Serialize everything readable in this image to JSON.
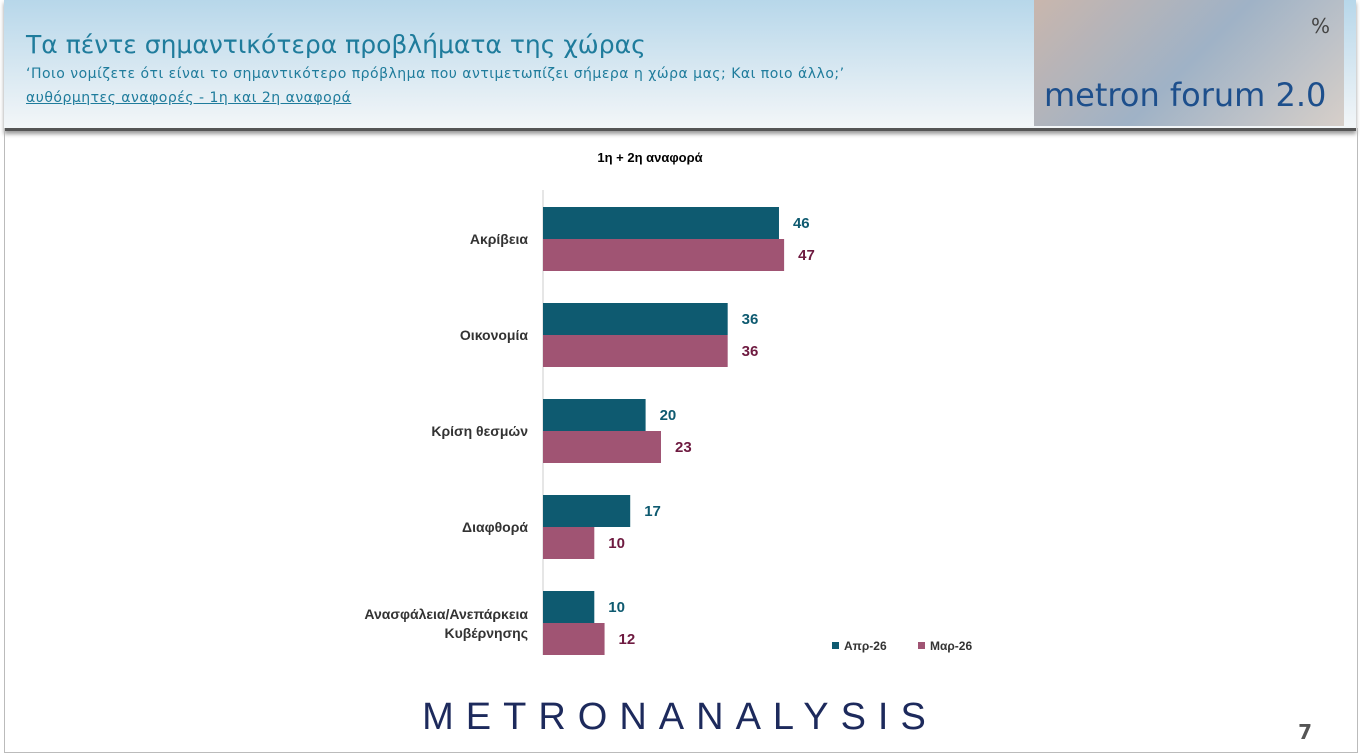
{
  "header": {
    "title": "Τα πέντε σημαντικότερα προβλήματα της χώρας",
    "subtitle": "‘Ποιο νομίζετε ότι είναι το σημαντικότερο πρόβλημα που αντιμετωπίζει σήμερα η χώρα μας; Και ποιο άλλο;’",
    "note": "αυθόρμητες αναφορές - 1η και 2η αναφορά",
    "logo_text": "metron forum 2.0",
    "logo_symbol": "%"
  },
  "chart_data": {
    "type": "bar",
    "orientation": "horizontal",
    "title": "1η + 2η αναφορά",
    "categories": [
      "Ακρίβεια",
      "Οικονομία",
      "Κρίση θεσμών",
      "Διαφθορά",
      "Ανασφάλεια/Ανεπάρκεια Κυβέρνησης"
    ],
    "series": [
      {
        "name": "Απρ-26",
        "color": "#0e5a70",
        "label_color": "#0e5a70",
        "values": [
          46,
          36,
          20,
          17,
          10
        ]
      },
      {
        "name": "Μαρ-26",
        "color": "#a05473",
        "label_color": "#6e1a40",
        "values": [
          47,
          36,
          23,
          10,
          12
        ]
      }
    ],
    "legend": "bottom-right",
    "grid": false
  },
  "footer": {
    "brand": "METRONANALYSIS",
    "page": "7"
  }
}
